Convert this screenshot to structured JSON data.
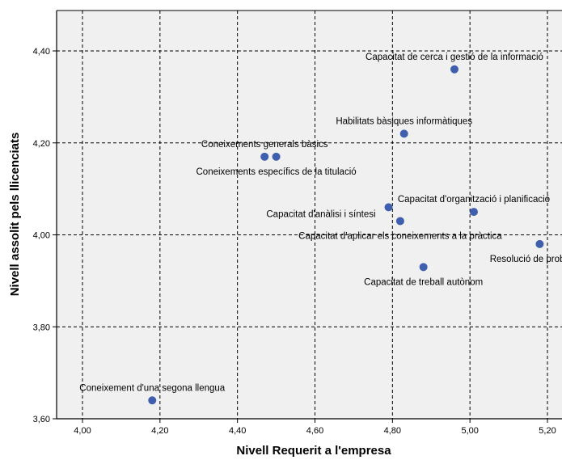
{
  "chart_data": {
    "type": "scatter",
    "title": "",
    "xlabel": "Nivell Requerit a l'empresa",
    "ylabel": "Nivell assolit pels llicenciats",
    "xlim": [
      3.94,
      5.24
    ],
    "ylim": [
      3.6,
      4.49
    ],
    "x_ticks": [
      4.0,
      4.2,
      4.4,
      4.6,
      4.8,
      5.0,
      5.2
    ],
    "x_tick_labels": [
      "4,00",
      "4,20",
      "4,40",
      "4,60",
      "4,80",
      "5,00",
      "5,20"
    ],
    "y_ticks": [
      3.6,
      3.8,
      4.0,
      4.2,
      4.4
    ],
    "y_tick_labels": [
      "3,60",
      "3,80",
      "4,00",
      "4,20",
      "4,40"
    ],
    "grid": true,
    "plot_background": "#f0f0f0",
    "marker_color": "#3f5fae",
    "points": [
      {
        "label": "Capacitat de cerca i gestió de la informació",
        "x": 4.96,
        "y": 4.36,
        "label_pos": "above"
      },
      {
        "label": "Habilitats bàsiques informàtiques",
        "x": 4.83,
        "y": 4.22,
        "label_pos": "above"
      },
      {
        "label": "Coneixements generals bàsics",
        "x": 4.47,
        "y": 4.17,
        "label_pos": "above"
      },
      {
        "label": "Coneixements específics de la titulació",
        "x": 4.5,
        "y": 4.17,
        "label_pos": "below"
      },
      {
        "label": "Capacitat d'organització i planificació",
        "x": 5.01,
        "y": 4.05,
        "label_pos": "above"
      },
      {
        "label": "Capacitat d'anàlisi i síntesi",
        "x": 4.79,
        "y": 4.06,
        "label_pos": "left-below"
      },
      {
        "label": "Capacitat d'aplicar els coneixements a la pràctica",
        "x": 4.82,
        "y": 4.03,
        "label_pos": "below"
      },
      {
        "label": "Resolució de problemes",
        "x": 5.18,
        "y": 3.98,
        "label_pos": "below"
      },
      {
        "label": "Capacitat de treball autònom",
        "x": 4.88,
        "y": 3.93,
        "label_pos": "below"
      },
      {
        "label": "Coneixement d'una segona llengua",
        "x": 4.18,
        "y": 3.64,
        "label_pos": "above"
      }
    ]
  }
}
